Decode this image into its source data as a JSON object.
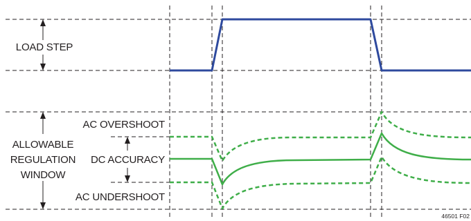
{
  "labels": {
    "load_step": "LOAD STEP",
    "ac_overshoot": "AC OVERSHOOT",
    "allowable_line1": "ALLOWABLE",
    "allowable_line2": "REGULATION",
    "allowable_line3": "WINDOW",
    "dc_accuracy": "DC ACCURACY",
    "ac_undershoot": "AC UNDERSHOOT",
    "figure_id": "46501 F02"
  },
  "colors": {
    "load_step": "#2e4a9e",
    "regulation": "#3fae49",
    "guides": "#231f20"
  }
}
